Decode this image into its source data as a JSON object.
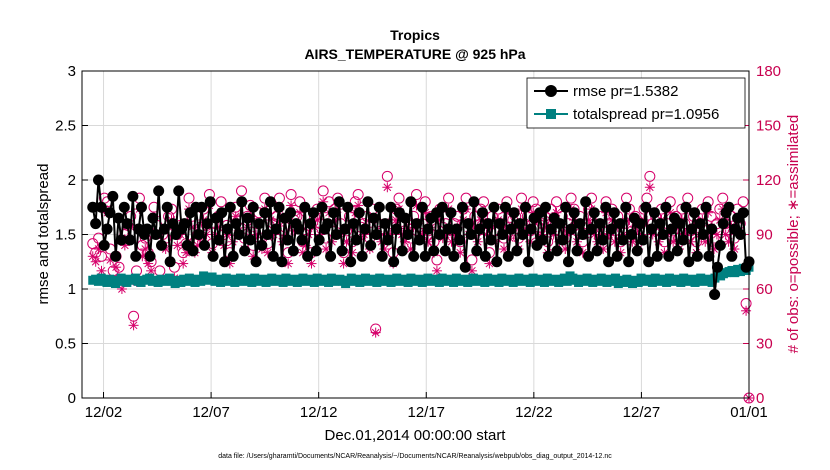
{
  "chart_data": {
    "type": "line",
    "title": "Tropics",
    "subtitle": "AIRS_TEMPERATURE @ 925 hPa",
    "xlabel": "Dec.01,2014 00:00:00 start",
    "ylabel": "rmse and totalspread",
    "ylabel_right": "# of obs: o=possible; ∗=assimilated",
    "footer": "data file: /Users/gharamti/Documents/NCAR/Reanalysis/~/Documents/NCAR/Reanalysis/webpub/obs_diag_output_2014-12.nc",
    "xlim": [
      1,
      32
    ],
    "ylim": [
      0,
      3
    ],
    "ylim_right": [
      0,
      180
    ],
    "x_ticks": [
      {
        "value": 2,
        "label": "12/02"
      },
      {
        "value": 7,
        "label": "12/07"
      },
      {
        "value": 12,
        "label": "12/12"
      },
      {
        "value": 17,
        "label": "12/17"
      },
      {
        "value": 22,
        "label": "12/22"
      },
      {
        "value": 27,
        "label": "12/27"
      },
      {
        "value": 32,
        "label": "01/01"
      }
    ],
    "y_ticks": [
      "0",
      "0.5",
      "1",
      "1.5",
      "2",
      "2.5",
      "3"
    ],
    "y_ticks_right": [
      "0",
      "30",
      "60",
      "90",
      "120",
      "150",
      "180"
    ],
    "grid": true,
    "legend_position": "top-right",
    "series": [
      {
        "name": "rmse pr=1.5382",
        "color": "#000000",
        "marker": "circle",
        "values": [
          1.75,
          1.6,
          2.0,
          1.75,
          1.4,
          1.55,
          1.7,
          1.85,
          1.3,
          1.65,
          1.45,
          1.75,
          1.6,
          1.45,
          1.85,
          1.3,
          1.55,
          1.75,
          1.5,
          1.55,
          1.3,
          1.65,
          1.5,
          1.9,
          1.4,
          1.55,
          1.75,
          1.25,
          1.6,
          1.5,
          1.9,
          1.55,
          1.6,
          1.4,
          1.7,
          1.35,
          1.75,
          1.5,
          1.75,
          1.4,
          1.6,
          1.8,
          1.3,
          1.65,
          1.45,
          1.7,
          1.25,
          1.55,
          1.75,
          1.3,
          1.6,
          1.5,
          1.8,
          1.35,
          1.65,
          1.45,
          1.75,
          1.25,
          1.6,
          1.4,
          1.7,
          1.5,
          1.8,
          1.3,
          1.55,
          1.75,
          1.25,
          1.65,
          1.45,
          1.7,
          1.35,
          1.6,
          1.55,
          1.45,
          1.75,
          1.3,
          1.6,
          1.7,
          1.35,
          1.45,
          1.75,
          1.55,
          1.6,
          1.3,
          1.7,
          1.5,
          1.8,
          1.35,
          1.55,
          1.75,
          1.25,
          1.6,
          1.45,
          1.7,
          1.3,
          1.55,
          1.8,
          1.4,
          1.65,
          1.5,
          1.75,
          1.3,
          1.6,
          1.45,
          1.75,
          1.25,
          1.55,
          1.7,
          1.35,
          1.65,
          1.5,
          1.8,
          1.3,
          1.6,
          1.45,
          1.75,
          1.3,
          1.55,
          1.65,
          1.35,
          1.7,
          1.5,
          1.75,
          1.35,
          1.55,
          1.7,
          1.3,
          1.55,
          1.45,
          1.75,
          1.2,
          1.6,
          1.5,
          1.8,
          1.35,
          1.55,
          1.7,
          1.3,
          1.6,
          1.45,
          1.75,
          1.25,
          1.6,
          1.5,
          1.75,
          1.3,
          1.55,
          1.7,
          1.35,
          1.6,
          1.5,
          1.75,
          1.25,
          1.55,
          1.65,
          1.4,
          1.7,
          1.45,
          1.75,
          1.3,
          1.55,
          1.65,
          1.35,
          1.6,
          1.45,
          1.75,
          1.25,
          1.55,
          1.7,
          1.35,
          1.6,
          1.5,
          1.8,
          1.3,
          1.55,
          1.7,
          1.35,
          1.6,
          1.45,
          1.75,
          1.25,
          1.55,
          1.7,
          1.3,
          1.6,
          1.45,
          1.75,
          1.25,
          1.5,
          1.65,
          1.35,
          1.6,
          1.45,
          1.75,
          1.25,
          1.55,
          1.7,
          1.3,
          1.6,
          1.5,
          1.75,
          1.3,
          1.55,
          1.65,
          1.35,
          1.6,
          1.45,
          1.75,
          1.25,
          1.55,
          1.7,
          1.3,
          1.6,
          1.5,
          1.75,
          1.3,
          1.55,
          0.95,
          1.2,
          1.4,
          1.6,
          1.7,
          1.75,
          1.3,
          1.55,
          1.65,
          1.5,
          1.7,
          1.2,
          1.25
        ]
      },
      {
        "name": "totalspread pr=1.0956",
        "color": "#008080",
        "marker": "square",
        "values": [
          1.08,
          1.09,
          1.07,
          1.1,
          1.08,
          1.06,
          1.09,
          1.07,
          1.05,
          1.08,
          1.1,
          1.07,
          1.06,
          1.09,
          1.08,
          1.1,
          1.07,
          1.06,
          1.08,
          1.09,
          1.1,
          1.07,
          1.08,
          1.06,
          1.09,
          1.07,
          1.08,
          1.1,
          1.07,
          1.05,
          1.08,
          1.06,
          1.09,
          1.07,
          1.1,
          1.08,
          1.06,
          1.09,
          1.07,
          1.12,
          1.1,
          1.08,
          1.11,
          1.07,
          1.09,
          1.06,
          1.08,
          1.1,
          1.07,
          1.09,
          1.06,
          1.08,
          1.1,
          1.07,
          1.09,
          1.08,
          1.06,
          1.1,
          1.08,
          1.07,
          1.09,
          1.06,
          1.08,
          1.1,
          1.07,
          1.09,
          1.08,
          1.06,
          1.1,
          1.07,
          1.08,
          1.09,
          1.06,
          1.08,
          1.1,
          1.07,
          1.09,
          1.08,
          1.06,
          1.1,
          1.07,
          1.09,
          1.08,
          1.06,
          1.1,
          1.07,
          1.08,
          1.09,
          1.07,
          1.05,
          1.08,
          1.1,
          1.07,
          1.09,
          1.06,
          1.08,
          1.1,
          1.07,
          1.09,
          1.08,
          1.06,
          1.1,
          1.08,
          1.07,
          1.09,
          1.06,
          1.08,
          1.1,
          1.07,
          1.09,
          1.08,
          1.06,
          1.1,
          1.07,
          1.08,
          1.09,
          1.06,
          1.08,
          1.1,
          1.07,
          1.09,
          1.08,
          1.06,
          1.1,
          1.07,
          1.09,
          1.08,
          1.06,
          1.1,
          1.07,
          1.08,
          1.09,
          1.06,
          1.08,
          1.1,
          1.07,
          1.09,
          1.08,
          1.06,
          1.1,
          1.07,
          1.09,
          1.08,
          1.06,
          1.1,
          1.07,
          1.08,
          1.09,
          1.06,
          1.08,
          1.1,
          1.07,
          1.09,
          1.08,
          1.06,
          1.1,
          1.07,
          1.09,
          1.08,
          1.06,
          1.1,
          1.07,
          1.08,
          1.09,
          1.06,
          1.08,
          1.1,
          1.07,
          1.12,
          1.1,
          1.08,
          1.06,
          1.09,
          1.07,
          1.1,
          1.08,
          1.06,
          1.09,
          1.07,
          1.1,
          1.08,
          1.06,
          1.09,
          1.07,
          1.1,
          1.05,
          1.08,
          1.06,
          1.09,
          1.07,
          1.05,
          1.08,
          1.06,
          1.1,
          1.07,
          1.09,
          1.08,
          1.06,
          1.1,
          1.07,
          1.09,
          1.08,
          1.06,
          1.1,
          1.07,
          1.09,
          1.08,
          1.06,
          1.1,
          1.07,
          1.08,
          1.09,
          1.06,
          1.08,
          1.1,
          1.07,
          1.09,
          1.08,
          1.06,
          1.1,
          1.13,
          1.12,
          1.14,
          1.15,
          1.16,
          1.17,
          1.15,
          1.18,
          1.16,
          1.19,
          1.17,
          1.2
        ]
      },
      {
        "name": "possible obs",
        "axis": "right",
        "color": "#d6006a",
        "marker": "open-circle",
        "values": [
          85,
          80,
          88,
          78,
          110,
          108,
          82,
          70,
          78,
          72,
          65,
          90,
          95,
          100,
          45,
          70,
          110,
          84,
          88,
          80,
          75,
          105,
          95,
          70,
          90,
          88,
          100,
          104,
          72,
          90,
          95,
          80,
          85,
          110,
          100,
          86,
          90,
          94,
          104,
          95,
          112,
          85,
          96,
          100,
          108,
          90,
          95,
          80,
          92,
          105,
          98,
          114,
          88,
          100,
          106,
          84,
          96,
          102,
          88,
          110,
          85,
          104,
          96,
          100,
          110,
          92,
          94,
          80,
          112,
          98,
          100,
          108,
          86,
          90,
          95,
          80,
          100,
          104,
          96,
          114,
          88,
          108,
          92,
          104,
          110,
          96,
          80,
          92,
          100,
          86,
          108,
          112,
          94,
          96,
          100,
          88,
          104,
          38,
          96,
          92,
          88,
          122,
          96,
          80,
          104,
          110,
          96,
          92,
          98,
          88,
          100,
          112,
          94,
          96,
          108,
          92,
          100,
          86,
          76,
          104,
          94,
          96,
          110,
          92,
          96,
          100,
          86,
          104,
          110,
          96,
          76,
          100,
          92,
          104,
          108,
          96,
          80,
          100,
          92,
          104,
          96,
          88,
          108,
          94,
          98,
          100,
          88,
          110,
          96,
          100,
          92,
          108,
          104,
          94,
          96,
          100,
          86,
          104,
          96,
          108,
          92,
          100,
          88,
          96,
          110,
          104,
          92,
          100,
          86,
          96,
          104,
          110,
          96,
          92,
          100,
          88,
          108,
          96,
          104,
          92,
          100,
          86,
          96,
          110,
          104,
          92,
          100,
          88,
          96,
          104,
          110,
          122,
          96,
          100,
          92,
          104,
          86,
          96,
          108,
          92,
          100,
          88,
          104,
          96,
          110,
          92,
          100,
          86,
          96,
          104,
          92,
          108,
          100,
          88,
          96,
          104,
          110,
          96,
          92,
          100,
          88,
          104,
          96,
          108,
          52,
          0
        ]
      },
      {
        "name": "assimilated obs",
        "axis": "right",
        "color": "#d6006a",
        "marker": "asterisk",
        "values": [
          78,
          75,
          82,
          70,
          104,
          102,
          76,
          65,
          72,
          66,
          60,
          84,
          88,
          94,
          40,
          64,
          104,
          78,
          82,
          74,
          70,
          100,
          90,
          64,
          84,
          82,
          94,
          98,
          66,
          84,
          90,
          74,
          80,
          104,
          94,
          80,
          84,
          88,
          98,
          90,
          106,
          80,
          90,
          94,
          102,
          84,
          90,
          74,
          86,
          100,
          92,
          108,
          82,
          94,
          100,
          78,
          90,
          96,
          82,
          104,
          80,
          98,
          90,
          94,
          104,
          86,
          88,
          74,
          106,
          92,
          94,
          102,
          80,
          84,
          90,
          74,
          94,
          98,
          90,
          108,
          82,
          102,
          86,
          98,
          104,
          90,
          74,
          86,
          94,
          80,
          102,
          106,
          88,
          90,
          94,
          82,
          98,
          36,
          90,
          86,
          82,
          116,
          90,
          74,
          98,
          104,
          90,
          86,
          92,
          82,
          94,
          106,
          88,
          90,
          102,
          86,
          94,
          80,
          70,
          98,
          88,
          90,
          104,
          86,
          90,
          94,
          80,
          98,
          104,
          90,
          70,
          94,
          86,
          98,
          102,
          90,
          74,
          94,
          86,
          98,
          90,
          82,
          102,
          88,
          92,
          94,
          82,
          104,
          90,
          94,
          86,
          102,
          98,
          88,
          90,
          94,
          80,
          98,
          90,
          102,
          86,
          94,
          82,
          90,
          104,
          98,
          86,
          94,
          80,
          90,
          98,
          104,
          90,
          86,
          94,
          82,
          102,
          90,
          98,
          86,
          94,
          80,
          90,
          104,
          98,
          86,
          94,
          82,
          90,
          98,
          104,
          116,
          90,
          94,
          86,
          98,
          80,
          90,
          102,
          86,
          94,
          82,
          98,
          90,
          104,
          86,
          94,
          80,
          90,
          98,
          86,
          102,
          94,
          82,
          90,
          98,
          104,
          90,
          86,
          94,
          82,
          98,
          90,
          102,
          48,
          0
        ]
      }
    ]
  }
}
